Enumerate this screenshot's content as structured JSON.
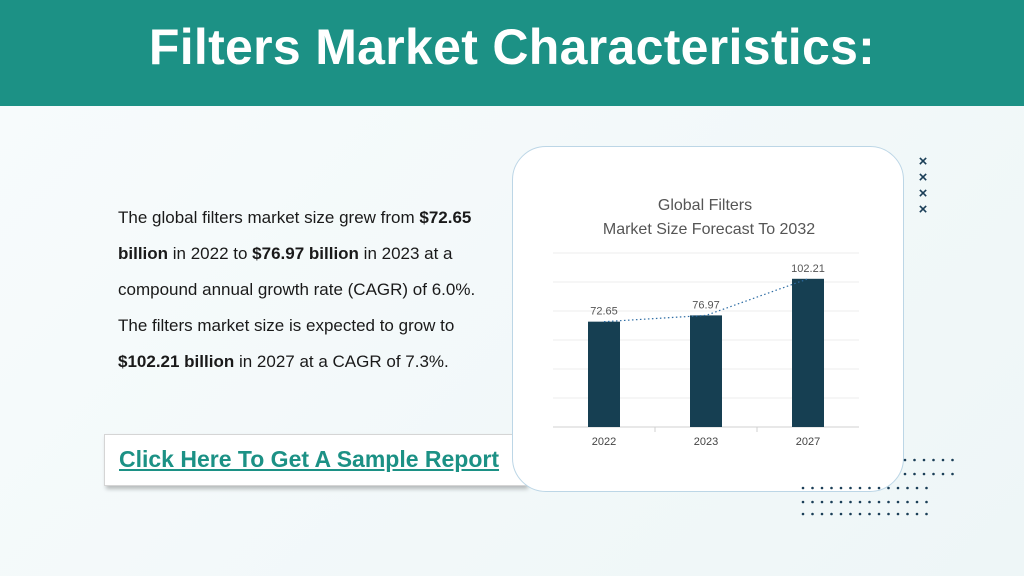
{
  "header": {
    "title": "Filters Market Characteristics:"
  },
  "description": {
    "p1": "The global filters market size grew from ",
    "v1": "$72.65 billion",
    "p2": " in 2022 to ",
    "v2": "$76.97 billion",
    "p3": " in 2023 at a compound annual growth rate (CAGR) of 6.0%. The filters market size is expected to grow to ",
    "v3": "$102.21 billion",
    "p4": " in 2027 at a CAGR of 7.3%."
  },
  "cta": {
    "label": "Click Here To Get A Sample Report"
  },
  "chart_data": {
    "type": "bar",
    "title_line1": "Global Filters",
    "title_line2": "Market Size Forecast To 2032",
    "categories": [
      "2022",
      "2023",
      "2027"
    ],
    "values": [
      72.65,
      76.97,
      102.21
    ],
    "value_labels": [
      "72.65",
      "76.97",
      "102.21"
    ],
    "ylim": [
      0,
      120
    ],
    "grid": true,
    "trendline": "dotted",
    "colors": {
      "bar": "#163f52",
      "trendline": "#2e6da4"
    }
  },
  "colors": {
    "header": "#1c9185",
    "accent": "#1c9185",
    "decoration": "#1a3e57"
  }
}
